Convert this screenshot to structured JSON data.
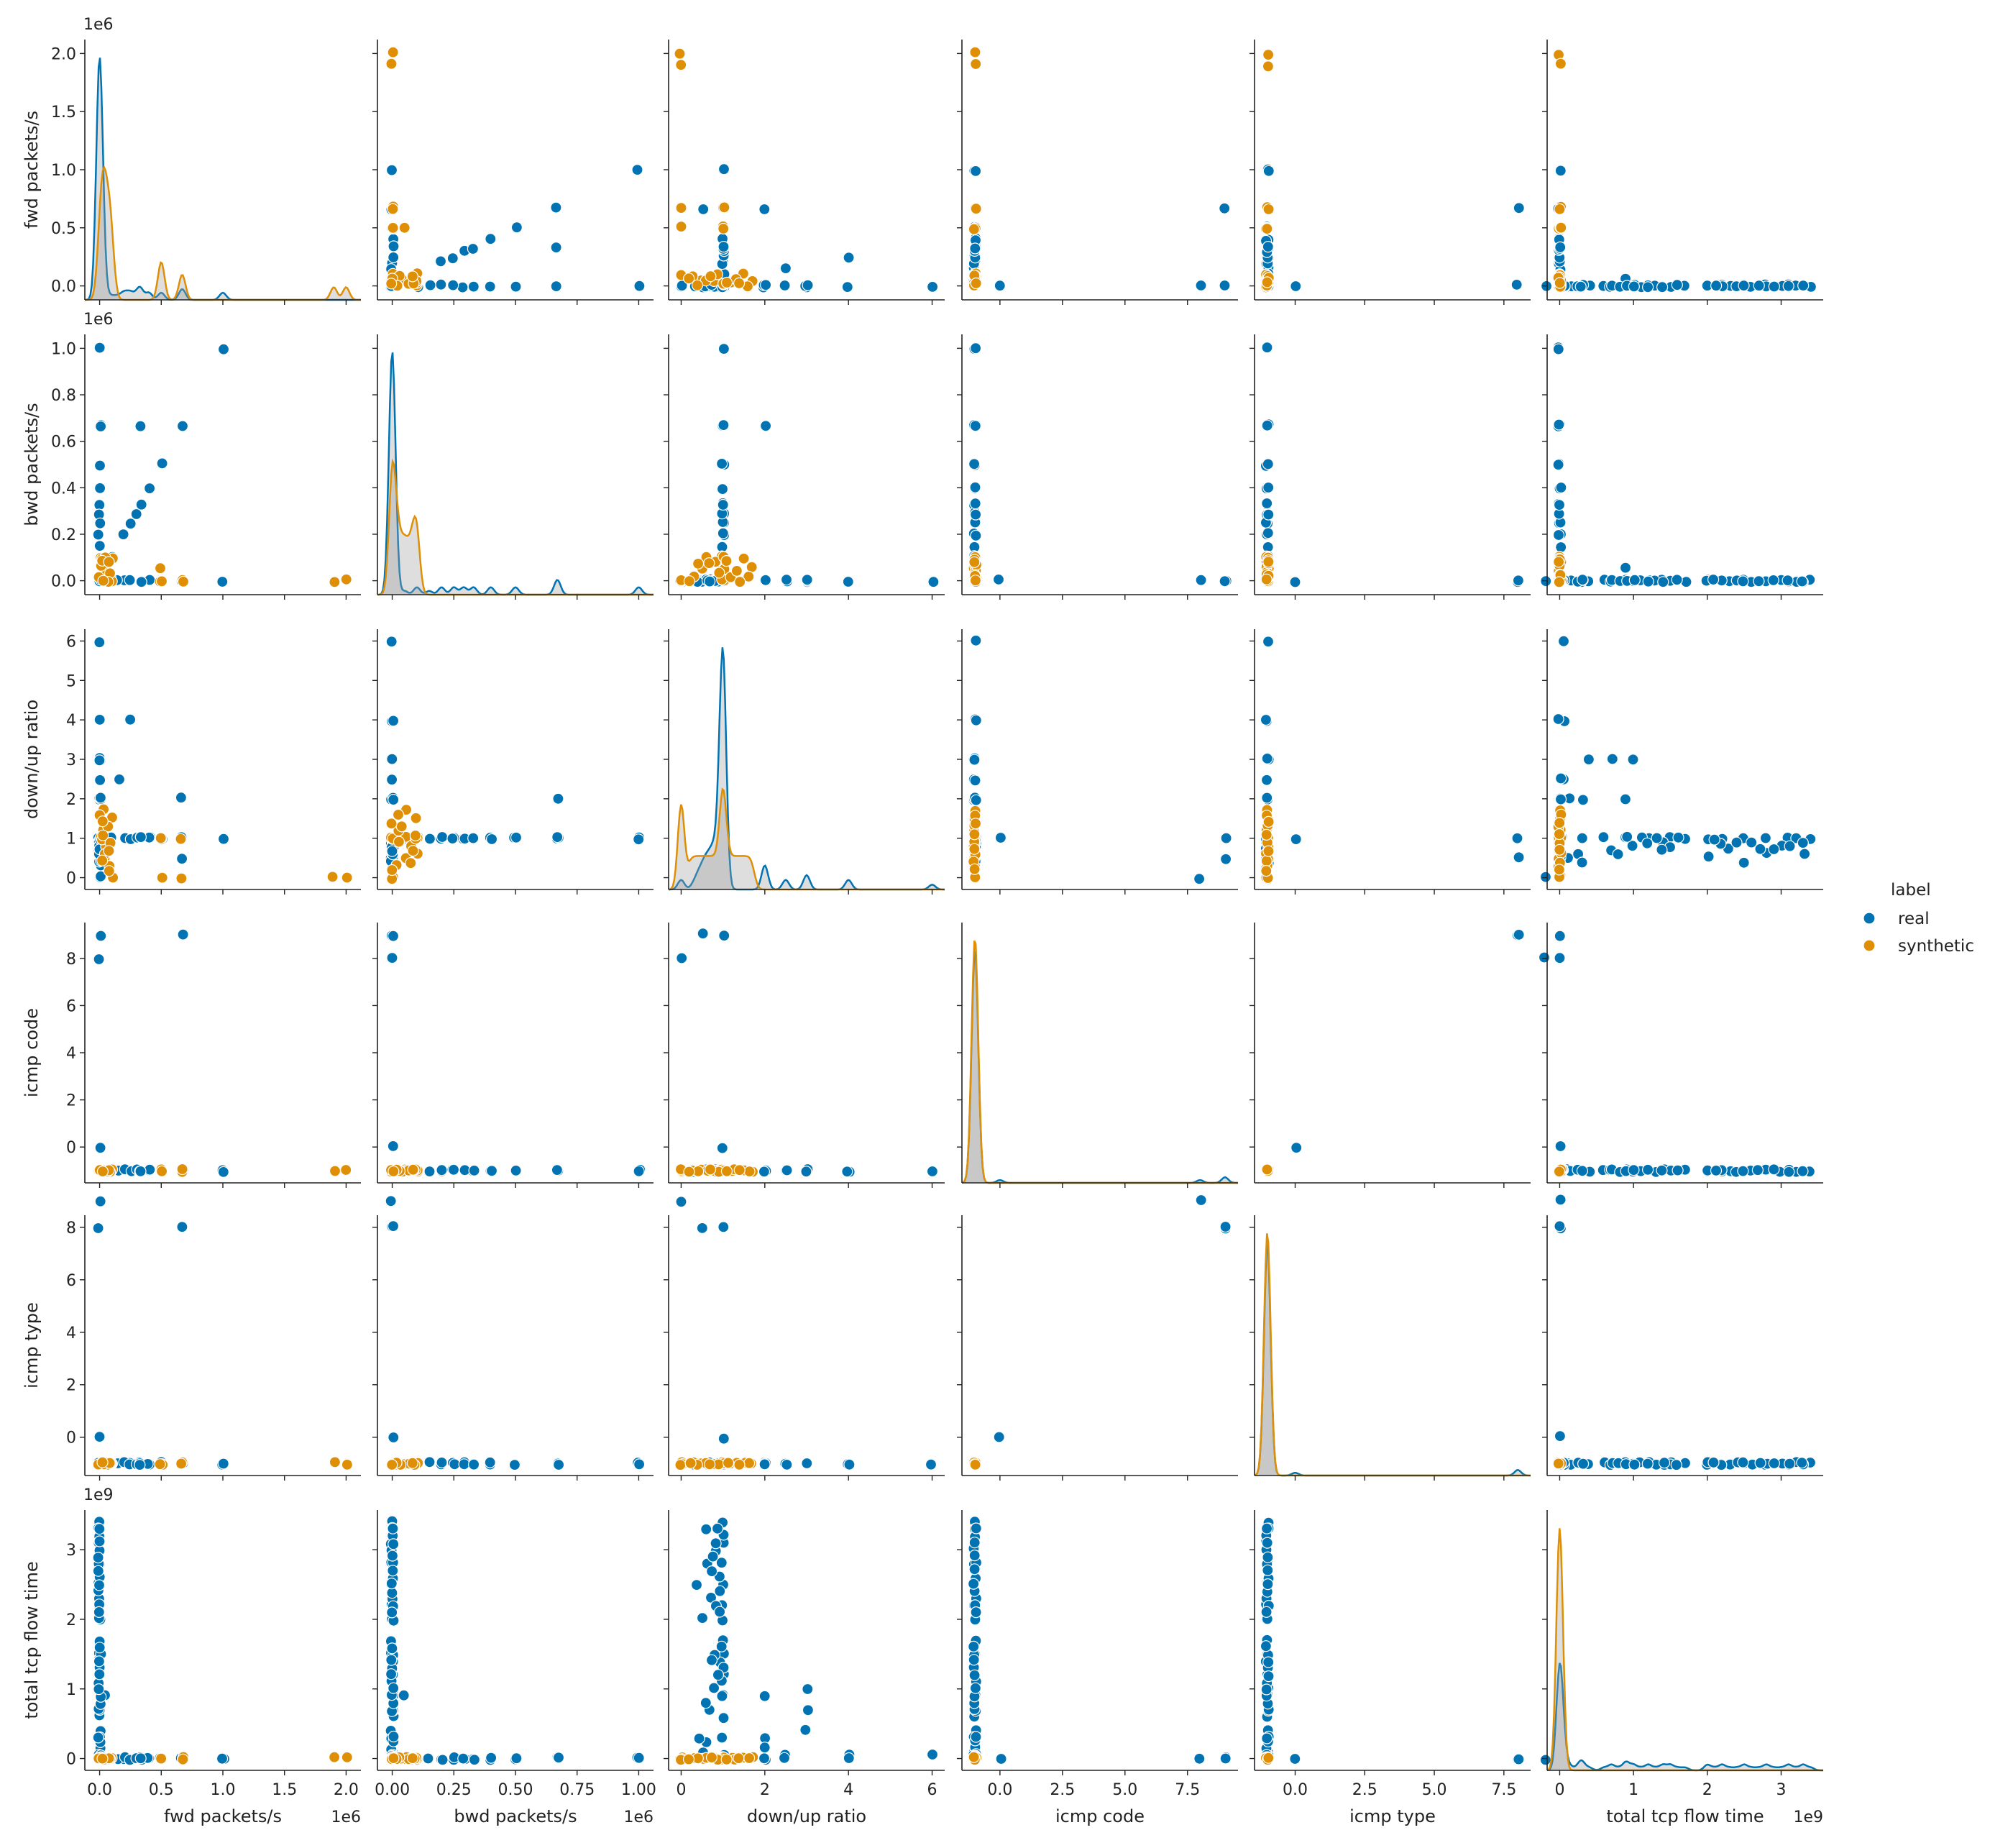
{
  "chart_data": {
    "type": "scatter",
    "variables": [
      {
        "key": "fwd",
        "label": "fwd packets/s",
        "range": [
          -0.12,
          2.12
        ],
        "ticks": [
          0.0,
          0.5,
          1.0,
          1.5,
          2.0
        ],
        "tick_labels": [
          "0.0",
          "0.5",
          "1.0",
          "1.5",
          "2.0"
        ],
        "offset": "1e6"
      },
      {
        "key": "bwd",
        "label": "bwd packets/s",
        "range": [
          -0.06,
          1.06
        ],
        "ticks": [
          0.0,
          0.2,
          0.4,
          0.6,
          0.8,
          1.0
        ],
        "tick_labels": [
          "0.0",
          "0.2",
          "0.4",
          "0.6",
          "0.8",
          "1.0"
        ],
        "x_ticks": [
          0.0,
          0.25,
          0.5,
          0.75,
          1.0
        ],
        "x_tick_labels": [
          "0.00",
          "0.25",
          "0.50",
          "0.75",
          "1.00"
        ],
        "offset": "1e6"
      },
      {
        "key": "ratio",
        "label": "down/up ratio",
        "range": [
          -0.3,
          6.3
        ],
        "ticks": [
          0,
          1,
          2,
          3,
          4,
          5,
          6
        ],
        "tick_labels": [
          "0",
          "1",
          "2",
          "3",
          "4",
          "5",
          "6"
        ],
        "x_ticks": [
          0,
          2,
          4,
          6
        ],
        "x_tick_labels": [
          "0",
          "2",
          "4",
          "6"
        ],
        "offset": ""
      },
      {
        "key": "code",
        "label": "icmp code",
        "range": [
          -1.52,
          9.52
        ],
        "ticks": [
          0,
          2,
          4,
          6,
          8
        ],
        "tick_labels": [
          "0",
          "2",
          "4",
          "6",
          "8"
        ],
        "x_ticks": [
          0.0,
          2.5,
          5.0,
          7.5
        ],
        "x_tick_labels": [
          "0.0",
          "2.5",
          "5.0",
          "7.5"
        ],
        "offset": ""
      },
      {
        "key": "type",
        "label": "icmp type",
        "range": [
          -1.46,
          8.46
        ],
        "ticks": [
          0,
          2,
          4,
          6,
          8
        ],
        "tick_labels": [
          "0",
          "2",
          "4",
          "6",
          "8"
        ],
        "x_ticks": [
          0.0,
          2.5,
          5.0,
          7.5
        ],
        "x_tick_labels": [
          "0.0",
          "2.5",
          "5.0",
          "7.5"
        ],
        "offset": ""
      },
      {
        "key": "tcp",
        "label": "total tcp flow time",
        "range": [
          -0.17,
          3.57
        ],
        "ticks": [
          0,
          1,
          2,
          3
        ],
        "tick_labels": [
          "0",
          "1",
          "2",
          "3"
        ],
        "offset": "1e9"
      }
    ],
    "series": [
      {
        "name": "real",
        "color": "#0173b2",
        "points": [
          [
            0.0,
            0.0,
            1.0,
            -1,
            -1,
            0.0
          ],
          [
            0.0,
            0.0,
            1.0,
            -1,
            -1,
            0.3
          ],
          [
            0.0,
            0.0,
            1.0,
            -1,
            -1,
            0.6
          ],
          [
            0.0,
            0.0,
            1.0,
            -1,
            -1,
            0.9
          ],
          [
            0.0,
            0.0,
            1.0,
            -1,
            -1,
            1.2
          ],
          [
            0.0,
            0.0,
            1.0,
            -1,
            -1,
            1.5
          ],
          [
            0.0,
            0.0,
            1.0,
            -1,
            -1,
            2.2
          ],
          [
            0.0,
            0.0,
            1.0,
            -1,
            -1,
            2.5
          ],
          [
            0.0,
            0.0,
            1.0,
            -1,
            -1,
            2.8
          ],
          [
            0.0,
            0.0,
            1.0,
            -1,
            -1,
            3.1
          ],
          [
            0.0,
            0.0,
            1.0,
            -1,
            -1,
            3.4
          ],
          [
            0.0,
            0.0,
            0.9,
            -1,
            -1,
            2.6
          ],
          [
            0.0,
            0.0,
            0.8,
            -1,
            -1,
            3.0
          ],
          [
            0.0,
            0.0,
            0.7,
            -1,
            -1,
            2.3
          ],
          [
            0.0,
            0.0,
            0.6,
            -1,
            -1,
            3.3
          ],
          [
            0.0,
            0.0,
            0.9,
            -1,
            -1,
            1.4
          ],
          [
            0.0,
            0.0,
            0.8,
            -1,
            -1,
            1.0
          ],
          [
            0.0,
            0.0,
            0.7,
            -1,
            -1,
            0.7
          ],
          [
            0.0,
            0.0,
            0.5,
            -1,
            -1,
            0.1
          ],
          [
            0.0,
            0.0,
            1.0,
            -1,
            -1,
            0.05
          ],
          [
            0.0,
            0.0,
            1.0,
            -1,
            -1,
            0.02
          ],
          [
            0.0,
            0.0,
            0.0,
            -1,
            -1,
            0.01
          ],
          [
            0.0,
            0.0,
            0.3,
            -1,
            -1,
            0.0
          ],
          [
            0.0,
            0.0,
            3.0,
            -1,
            -1,
            0.7
          ],
          [
            0.0,
            0.0,
            3.0,
            -1,
            -1,
            0.4
          ],
          [
            0.0,
            0.0,
            2.0,
            -1,
            -1,
            0.3
          ],
          [
            0.0,
            0.0,
            2.0,
            -1,
            -1,
            0.15
          ],
          [
            0.0,
            0.0,
            2.5,
            -1,
            -1,
            0.05
          ],
          [
            0.0,
            0.0,
            4.0,
            -1,
            -1,
            0.05
          ],
          [
            0.0,
            0.0,
            6.0,
            -1,
            -1,
            0.05
          ],
          [
            0.0,
            0.0,
            1.0,
            -1,
            -1,
            1.7
          ],
          [
            0.0,
            0.0,
            1.0,
            -1,
            -1,
            2.0
          ],
          [
            0.0,
            0.0,
            1.0,
            -1,
            -1,
            3.2
          ],
          [
            0.0,
            0.0,
            0.6,
            -1,
            -1,
            0.25
          ],
          [
            0.0,
            0.0,
            0.4,
            -1,
            -1,
            0.3
          ],
          [
            0.0,
            1.0,
            1.0,
            -1,
            -1,
            0.0
          ],
          [
            0.0,
            0.67,
            1.0,
            -1,
            -1,
            0.0
          ],
          [
            0.0,
            0.5,
            1.0,
            -1,
            -1,
            0.0
          ],
          [
            0.0,
            0.4,
            1.0,
            -1,
            -1,
            0.0
          ],
          [
            0.0,
            0.33,
            1.0,
            -1,
            -1,
            0.0
          ],
          [
            0.0,
            0.29,
            1.0,
            -1,
            -1,
            0.0
          ],
          [
            0.0,
            0.25,
            1.0,
            -1,
            -1,
            0.0
          ],
          [
            0.0,
            0.2,
            1.0,
            -1,
            -1,
            0.0
          ],
          [
            0.0,
            0.15,
            1.0,
            -1,
            -1,
            0.0
          ],
          [
            0.0,
            0.1,
            1.0,
            -1,
            -1,
            0.0
          ],
          [
            0.0,
            0.67,
            2.0,
            -1,
            -1,
            0.0
          ],
          [
            1.0,
            0.0,
            1.0,
            -1,
            -1,
            0.0
          ],
          [
            0.4,
            0.0,
            1.0,
            -1,
            -1,
            0.0
          ],
          [
            0.33,
            0.0,
            1.0,
            -1,
            -1,
            0.0
          ],
          [
            0.2,
            0.0,
            1.0,
            -1,
            -1,
            0.0
          ],
          [
            0.5,
            0.0,
            1.0,
            -1,
            -1,
            0.0
          ],
          [
            0.67,
            0.0,
            2.0,
            -1,
            -1,
            0.0
          ],
          [
            0.15,
            0.0,
            2.5,
            -1,
            -1,
            0.0
          ],
          [
            0.25,
            0.0,
            4.0,
            -1,
            -1,
            0.0
          ],
          [
            0.05,
            0.05,
            1.0,
            -1,
            -1,
            0.9
          ],
          [
            0.1,
            0.1,
            1.0,
            -1,
            -1,
            0.0
          ],
          [
            0.2,
            0.2,
            1.0,
            -1,
            -1,
            0.0
          ],
          [
            0.25,
            0.25,
            1.0,
            -1,
            -1,
            0.0
          ],
          [
            0.3,
            0.29,
            1.0,
            -1,
            -1,
            0.0
          ],
          [
            0.33,
            0.33,
            1.0,
            -1,
            -1,
            0.0
          ],
          [
            0.4,
            0.4,
            1.0,
            -1,
            -1,
            0.0
          ],
          [
            0.5,
            0.5,
            1.0,
            -1,
            -1,
            0.0
          ],
          [
            0.67,
            0.67,
            1.0,
            -1,
            -1,
            0.0
          ],
          [
            1.0,
            1.0,
            1.0,
            -1,
            -1,
            0.0
          ],
          [
            0.33,
            0.67,
            1.0,
            -1,
            -1,
            0.0
          ],
          [
            0.0,
            0.0,
            1.0,
            9,
            8,
            0.0
          ],
          [
            0.67,
            0.0,
            0.5,
            9,
            8,
            0.0
          ],
          [
            0.0,
            0.0,
            0.0,
            8,
            9,
            0.0
          ],
          [
            0.0,
            0.0,
            1.0,
            0,
            0,
            0.0
          ],
          [
            0.0,
            0.0,
            0.5,
            -1,
            -1,
            2.0
          ],
          [
            0.0,
            0.0,
            0.6,
            -1,
            -1,
            2.8
          ],
          [
            0.0,
            0.0,
            0.8,
            -1,
            -1,
            3.1
          ],
          [
            0.0,
            0.0,
            0.9,
            -1,
            -1,
            2.4
          ],
          [
            0.0,
            0.0,
            0.9,
            -1,
            -1,
            3.3
          ],
          [
            0.0,
            0.0,
            0.7,
            -1,
            -1,
            2.7
          ],
          [
            0.0,
            0.0,
            0.4,
            -1,
            -1,
            2.5
          ],
          [
            0.0,
            0.0,
            0.85,
            -1,
            -1,
            2.2
          ],
          [
            0.0,
            0.0,
            0.75,
            -1,
            -1,
            2.9
          ],
          [
            0.0,
            0.0,
            0.95,
            -1,
            -1,
            2.1
          ],
          [
            0.0,
            0.0,
            1.0,
            -1,
            -1,
            1.1
          ],
          [
            0.0,
            0.0,
            1.0,
            -1,
            -1,
            1.3
          ],
          [
            0.0,
            0.0,
            0.9,
            -1,
            -1,
            1.2
          ],
          [
            0.0,
            0.0,
            0.8,
            -1,
            -1,
            1.5
          ],
          [
            0.0,
            0.0,
            0.6,
            -1,
            -1,
            0.8
          ],
          [
            0.0,
            0.0,
            2.0,
            -1,
            -1,
            0.9
          ],
          [
            0.0,
            0.0,
            3.0,
            -1,
            -1,
            1.0
          ],
          [
            0.0,
            0.0,
            1.0,
            -1,
            -1,
            1.6
          ],
          [
            0.0,
            0.0,
            0.7,
            -1,
            -1,
            1.4
          ]
        ]
      },
      {
        "name": "synthetic",
        "color": "#de8f05",
        "points": [
          [
            2.0,
            0.0,
            0.0,
            -1,
            -1,
            0.0
          ],
          [
            1.9,
            0.0,
            0.0,
            -1,
            -1,
            0.0
          ],
          [
            0.67,
            0.0,
            1.0,
            -1,
            -1,
            0.0
          ],
          [
            0.67,
            0.0,
            0.0,
            -1,
            -1,
            0.0
          ],
          [
            0.5,
            0.0,
            1.0,
            -1,
            -1,
            0.0
          ],
          [
            0.5,
            0.0,
            0.0,
            -1,
            -1,
            0.0
          ],
          [
            0.5,
            0.05,
            1.0,
            -1,
            -1,
            0.0
          ],
          [
            0.0,
            0.1,
            1.0,
            -1,
            -1,
            0.0
          ],
          [
            0.05,
            0.05,
            0.5,
            -1,
            -1,
            0.0
          ],
          [
            0.1,
            0.1,
            1.5,
            -1,
            -1,
            0.0
          ],
          [
            0.02,
            0.02,
            1.2,
            -1,
            -1,
            0.0
          ],
          [
            0.05,
            0.08,
            0.8,
            -1,
            -1,
            0.0
          ],
          [
            0.08,
            0.02,
            0.3,
            -1,
            -1,
            0.0
          ],
          [
            0.1,
            0.0,
            0.0,
            -1,
            -1,
            0.0
          ],
          [
            0.03,
            0.06,
            1.7,
            -1,
            -1,
            0.0
          ],
          [
            0.02,
            0.1,
            1.0,
            -1,
            -1,
            0.0
          ],
          [
            0.04,
            0.1,
            0.6,
            -1,
            -1,
            0.0
          ],
          [
            0.06,
            0.04,
            1.3,
            -1,
            -1,
            0.0
          ],
          [
            0.01,
            0.07,
            0.4,
            -1,
            -1,
            0.0
          ],
          [
            0.09,
            0.03,
            0.9,
            -1,
            -1,
            0.0
          ],
          [
            0.07,
            0.0,
            0.2,
            -1,
            -1,
            0.0
          ],
          [
            0.03,
            0.09,
            1.1,
            -1,
            -1,
            0.0
          ],
          [
            0.0,
            0.02,
            1.6,
            -1,
            -1,
            0.0
          ],
          [
            0.08,
            0.08,
            0.7,
            -1,
            -1,
            0.0
          ],
          [
            0.02,
            0.0,
            1.4,
            -1,
            -1,
            0.0
          ]
        ]
      }
    ],
    "legend": {
      "title": "label",
      "position": "right-center",
      "entries": [
        "real",
        "synthetic"
      ]
    },
    "grid": false
  }
}
